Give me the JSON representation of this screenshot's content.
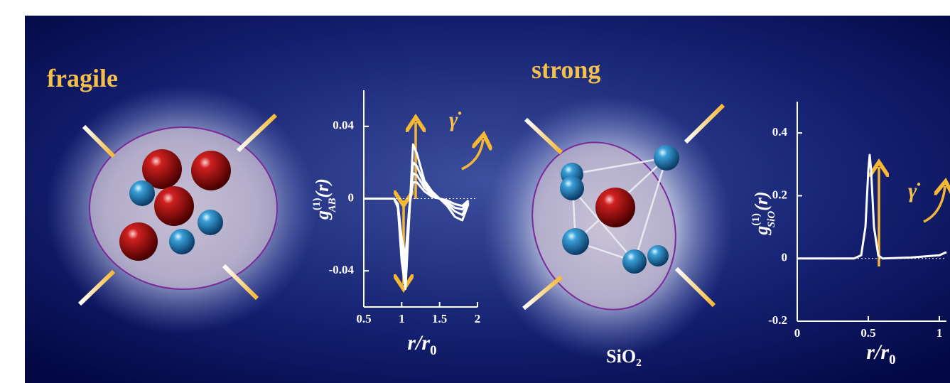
{
  "panels": [
    {
      "title": "fragile"
    },
    {
      "title": "strong",
      "formula": "SiO₂"
    }
  ],
  "chart_data": [
    {
      "type": "line",
      "y_label": {
        "symbol": "g",
        "superscript": "(1)",
        "subscript": "AB",
        "argument": "(r)"
      },
      "x_label": {
        "symbol": "r/r",
        "subscript": "0"
      },
      "annotation": "γ̇",
      "x": [
        0.5,
        0.9,
        0.95,
        1.0,
        1.05,
        1.1,
        1.15,
        1.2,
        1.3,
        1.4,
        1.5,
        1.6,
        1.7,
        1.8,
        1.88
      ],
      "series": [
        {
          "color": "#ffffff",
          "values": [
            0,
            0,
            -0.005,
            -0.035,
            -0.05,
            -0.01,
            0.03,
            0.025,
            0.01,
            0.004,
            0,
            -0.004,
            -0.01,
            -0.012,
            -0.003
          ]
        },
        {
          "color": "#ffffff",
          "values": [
            0,
            0,
            -0.005,
            -0.03,
            -0.044,
            -0.008,
            0.02,
            0.018,
            0.008,
            0.003,
            0,
            -0.003,
            -0.007,
            -0.009,
            -0.002
          ]
        },
        {
          "color": "#ffffff",
          "values": [
            0,
            0,
            -0.004,
            -0.026,
            -0.038,
            -0.006,
            0.014,
            0.013,
            0.006,
            0.002,
            0,
            -0.002,
            -0.005,
            -0.006,
            -0.001
          ]
        },
        {
          "color": "#ffffff",
          "values": [
            0,
            0,
            -0.003,
            -0.022,
            -0.032,
            -0.005,
            0.009,
            0.009,
            0.004,
            0.001,
            0,
            -0.001,
            -0.003,
            -0.004,
            -0.001
          ]
        }
      ],
      "xlim": [
        0.5,
        2
      ],
      "ylim": [
        -0.06,
        0.06
      ],
      "xticks": [
        0.5,
        1,
        1.5,
        2
      ],
      "yticks": [
        0.04,
        0,
        -0.04
      ]
    },
    {
      "type": "line",
      "y_label": {
        "symbol": "g",
        "superscript": "(1)",
        "subscript": "SiO",
        "argument": "(r)"
      },
      "x_label": {
        "symbol": "r/r",
        "subscript": "0"
      },
      "annotation": "γ̇",
      "x": [
        0,
        0.4,
        0.45,
        0.48,
        0.5,
        0.51,
        0.52,
        0.54,
        0.57,
        0.6,
        0.8,
        1,
        1.05
      ],
      "series": [
        {
          "color": "#ffffff",
          "values": [
            0,
            0,
            0.01,
            0.1,
            0.28,
            0.33,
            0.28,
            0.1,
            0.01,
            0,
            0.003,
            0.01,
            0.02
          ]
        }
      ],
      "xlim": [
        0,
        1.05
      ],
      "ylim": [
        -0.2,
        0.5
      ],
      "xticks": [
        0,
        0.5,
        1
      ],
      "yticks": [
        0.4,
        0.2,
        0,
        -0.2
      ]
    }
  ]
}
